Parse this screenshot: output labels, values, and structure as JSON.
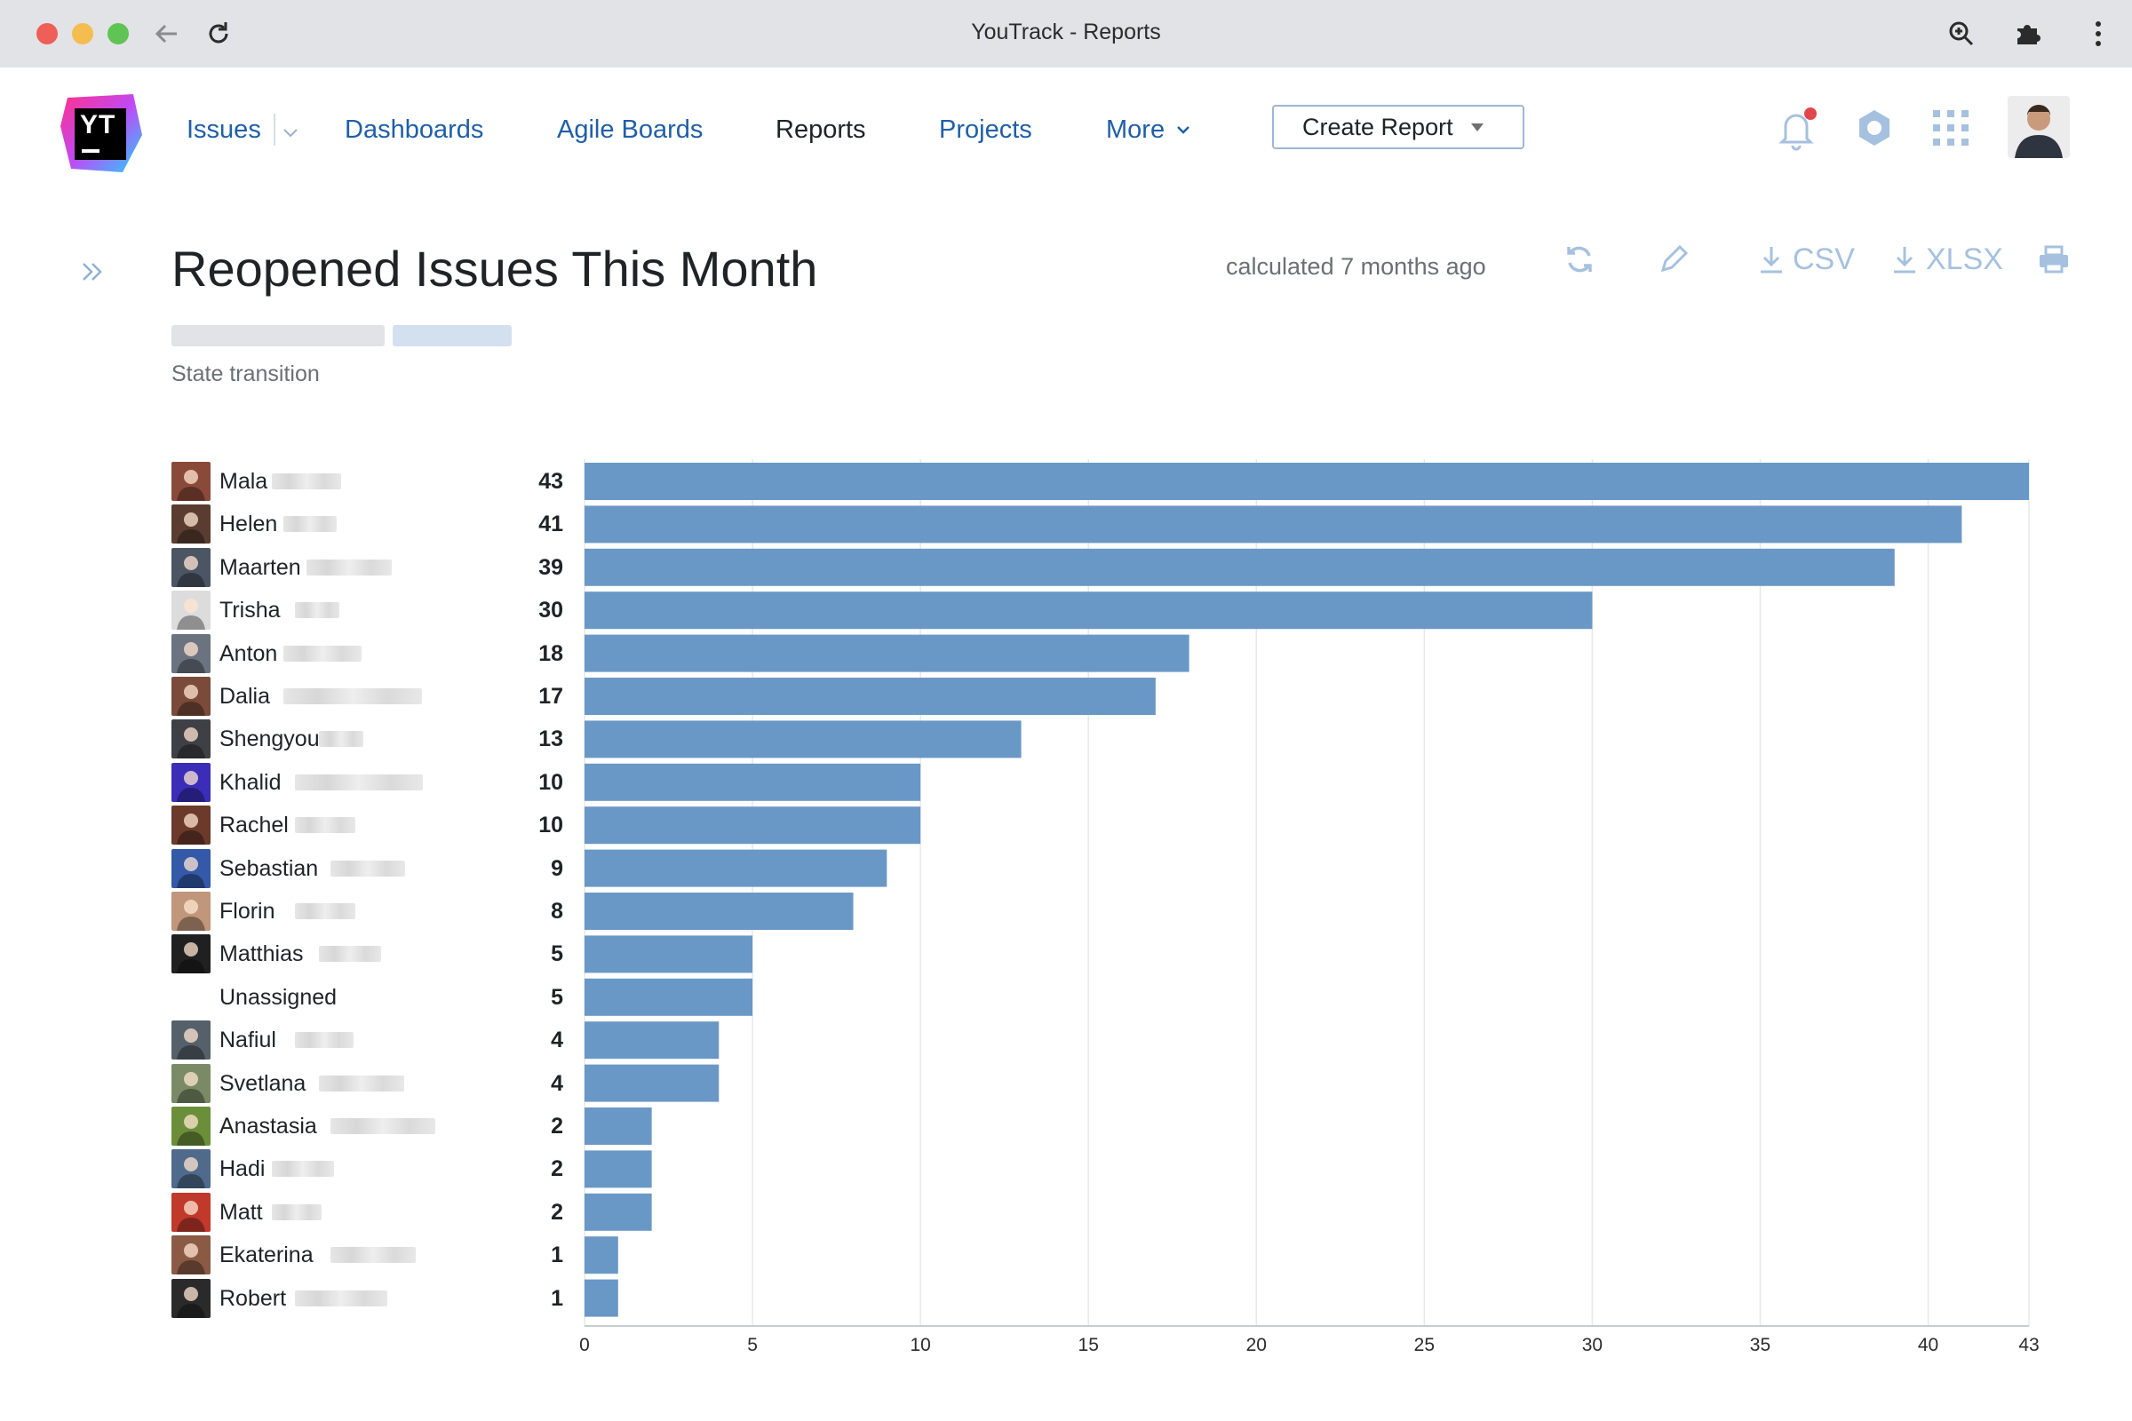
{
  "window": {
    "title": "YouTrack - Reports"
  },
  "nav": {
    "links": [
      "Issues",
      "Dashboards",
      "Agile Boards",
      "Reports",
      "Projects",
      "More"
    ],
    "active": "Reports",
    "create_button": "Create Report",
    "logo_text": "YT"
  },
  "report": {
    "title": "Reopened Issues This Month",
    "calculated": "calculated 7 months ago",
    "csv_label": "CSV",
    "xlsx_label": "XLSX",
    "subtitle": "State transition"
  },
  "colors": {
    "bar": "#6a98c6",
    "link": "#1f5fa8",
    "icon": "#a6c1df",
    "notification": "#e0474c"
  },
  "chart_data": {
    "type": "bar",
    "orientation": "horizontal",
    "categories": [
      "Mala",
      "Helen",
      "Maarten",
      "Trisha",
      "Anton",
      "Dalia",
      "Shengyou",
      "Khalid",
      "Rachel",
      "Sebastian",
      "Florin",
      "Matthias",
      "Unassigned",
      "Nafiul",
      "Svetlana",
      "Anastasia",
      "Hadi",
      "Matt",
      "Ekaterina",
      "Robert"
    ],
    "values": [
      43,
      41,
      39,
      30,
      18,
      17,
      13,
      10,
      10,
      9,
      8,
      5,
      5,
      4,
      4,
      2,
      2,
      2,
      1,
      1
    ],
    "xlim": [
      0,
      43
    ],
    "xticks": [
      0,
      5,
      10,
      15,
      20,
      25,
      30,
      35,
      40,
      43
    ],
    "grid": true
  }
}
